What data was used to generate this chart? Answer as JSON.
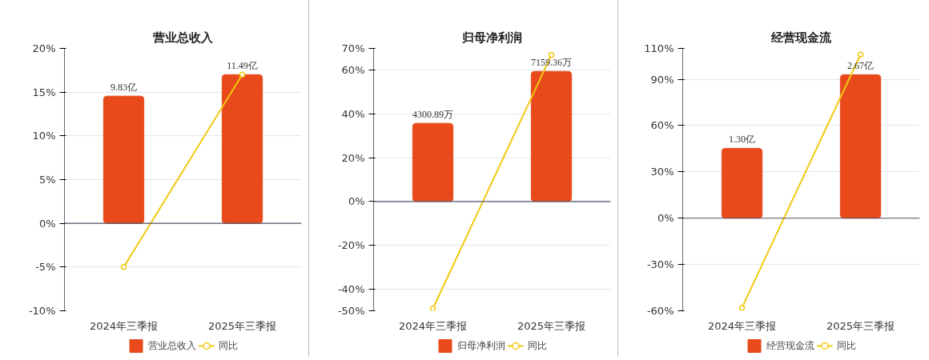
{
  "chart_data": [
    {
      "type": "bar",
      "title": "营业总收入",
      "categories": [
        "2024年三季报",
        "2025年三季报"
      ],
      "series": [
        {
          "name": "营业总收入",
          "axis": "y2",
          "color": "#e84a1b",
          "values": [
            9.83,
            11.49
          ],
          "value_labels": [
            "9.83亿",
            "11.49亿"
          ]
        },
        {
          "name": "同比",
          "type": "line",
          "axis": "y",
          "color": "#f2c811",
          "values": [
            -5,
            17
          ]
        }
      ],
      "ylim": [
        -10,
        20
      ],
      "yticks": [
        {
          "value": -10,
          "label": "-10%"
        },
        {
          "value": -5,
          "label": "-5%"
        },
        {
          "value": 0,
          "label": "0%"
        },
        {
          "value": 5,
          "label": "5%"
        },
        {
          "value": 10,
          "label": "10%"
        },
        {
          "value": 15,
          "label": "15%"
        },
        {
          "value": 20,
          "label": "20%"
        }
      ],
      "y2lim": [
        -6.76,
        13.52
      ],
      "grid": "y",
      "legend": "bottom",
      "marker": "circle"
    },
    {
      "type": "bar",
      "title": "归母净利润",
      "categories": [
        "2024年三季报",
        "2025年三季报"
      ],
      "series": [
        {
          "name": "归母净利润",
          "axis": "y2",
          "color": "#e84a1b",
          "values": [
            4300.89,
            7159.36
          ],
          "value_labels": [
            "4300.89万",
            "7159.36万"
          ]
        },
        {
          "name": "同比",
          "type": "line",
          "axis": "y",
          "color": "#f2c811",
          "values": [
            -49,
            67
          ]
        }
      ],
      "ylim": [
        -50,
        70
      ],
      "yticks": [
        {
          "value": -50,
          "label": "-50%"
        },
        {
          "value": -40,
          "label": "-40%"
        },
        {
          "value": -20,
          "label": "-20%"
        },
        {
          "value": 0,
          "label": "0%"
        },
        {
          "value": 20,
          "label": "20%"
        },
        {
          "value": 40,
          "label": "40%"
        },
        {
          "value": 60,
          "label": "60%"
        },
        {
          "value": 70,
          "label": "70%"
        }
      ],
      "y2lim": [
        -6017,
        8424
      ],
      "grid": "y",
      "legend": "bottom",
      "marker": "circle"
    },
    {
      "type": "bar",
      "title": "经营现金流",
      "categories": [
        "2024年三季报",
        "2025年三季报"
      ],
      "series": [
        {
          "name": "经营现金流",
          "axis": "y2",
          "color": "#e84a1b",
          "values": [
            1.3,
            2.67
          ],
          "value_labels": [
            "1.30亿",
            "2.67亿"
          ]
        },
        {
          "name": "同比",
          "type": "line",
          "axis": "y",
          "color": "#f2c811",
          "values": [
            -58,
            106
          ]
        }
      ],
      "ylim": [
        -60,
        110
      ],
      "yticks": [
        {
          "value": -60,
          "label": "-60%"
        },
        {
          "value": -30,
          "label": "-30%"
        },
        {
          "value": 0,
          "label": "0%"
        },
        {
          "value": 30,
          "label": "30%"
        },
        {
          "value": 60,
          "label": "60%"
        },
        {
          "value": 90,
          "label": "90%"
        },
        {
          "value": 110,
          "label": "110%"
        }
      ],
      "y2lim": [
        -1.724,
        3.16
      ],
      "grid": "y",
      "legend": "bottom",
      "marker": "circle"
    }
  ]
}
